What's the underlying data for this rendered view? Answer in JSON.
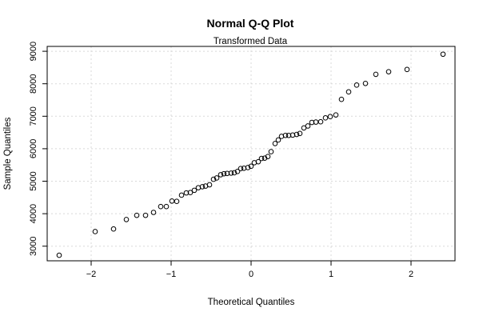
{
  "chart_data": {
    "type": "scatter",
    "title": "Normal Q-Q Plot",
    "subtitle": "Transformed Data",
    "xlabel": "Theoretical Quantiles",
    "ylabel": "Sample Quantiles",
    "xlim": [
      -2.55,
      2.55
    ],
    "ylim": [
      2550,
      9150
    ],
    "grid": true,
    "x_ticks": [
      -2,
      -1,
      0,
      1,
      2
    ],
    "x_tick_labels": [
      "−2",
      "−1",
      "0",
      "1",
      "2"
    ],
    "y_ticks": [
      3000,
      4000,
      5000,
      6000,
      7000,
      8000,
      9000
    ],
    "y_tick_labels": [
      "3000",
      "4000",
      "5000",
      "6000",
      "7000",
      "8000",
      "9000"
    ],
    "points": [
      [
        -2.4,
        2720
      ],
      [
        -1.95,
        3450
      ],
      [
        -1.72,
        3530
      ],
      [
        -1.56,
        3820
      ],
      [
        -1.43,
        3950
      ],
      [
        -1.32,
        3950
      ],
      [
        -1.22,
        4040
      ],
      [
        -1.13,
        4220
      ],
      [
        -1.06,
        4220
      ],
      [
        -0.99,
        4390
      ],
      [
        -0.93,
        4380
      ],
      [
        -0.87,
        4570
      ],
      [
        -0.81,
        4640
      ],
      [
        -0.76,
        4650
      ],
      [
        -0.71,
        4720
      ],
      [
        -0.66,
        4800
      ],
      [
        -0.61,
        4830
      ],
      [
        -0.57,
        4850
      ],
      [
        -0.52,
        4890
      ],
      [
        -0.47,
        5060
      ],
      [
        -0.43,
        5100
      ],
      [
        -0.38,
        5200
      ],
      [
        -0.34,
        5230
      ],
      [
        -0.3,
        5240
      ],
      [
        -0.25,
        5250
      ],
      [
        -0.21,
        5260
      ],
      [
        -0.17,
        5300
      ],
      [
        -0.13,
        5390
      ],
      [
        -0.09,
        5400
      ],
      [
        -0.04,
        5420
      ],
      [
        0.0,
        5460
      ],
      [
        0.04,
        5570
      ],
      [
        0.09,
        5600
      ],
      [
        0.13,
        5700
      ],
      [
        0.17,
        5710
      ],
      [
        0.21,
        5760
      ],
      [
        0.25,
        5910
      ],
      [
        0.3,
        6160
      ],
      [
        0.34,
        6270
      ],
      [
        0.38,
        6380
      ],
      [
        0.43,
        6410
      ],
      [
        0.47,
        6410
      ],
      [
        0.52,
        6420
      ],
      [
        0.57,
        6440
      ],
      [
        0.61,
        6470
      ],
      [
        0.66,
        6640
      ],
      [
        0.71,
        6700
      ],
      [
        0.76,
        6810
      ],
      [
        0.81,
        6820
      ],
      [
        0.87,
        6830
      ],
      [
        0.93,
        6950
      ],
      [
        0.99,
        6990
      ],
      [
        1.06,
        7040
      ],
      [
        1.13,
        7520
      ],
      [
        1.22,
        7750
      ],
      [
        1.32,
        7960
      ],
      [
        1.43,
        8010
      ],
      [
        1.56,
        8290
      ],
      [
        1.72,
        8370
      ],
      [
        1.95,
        8440
      ],
      [
        2.4,
        8910
      ]
    ]
  }
}
